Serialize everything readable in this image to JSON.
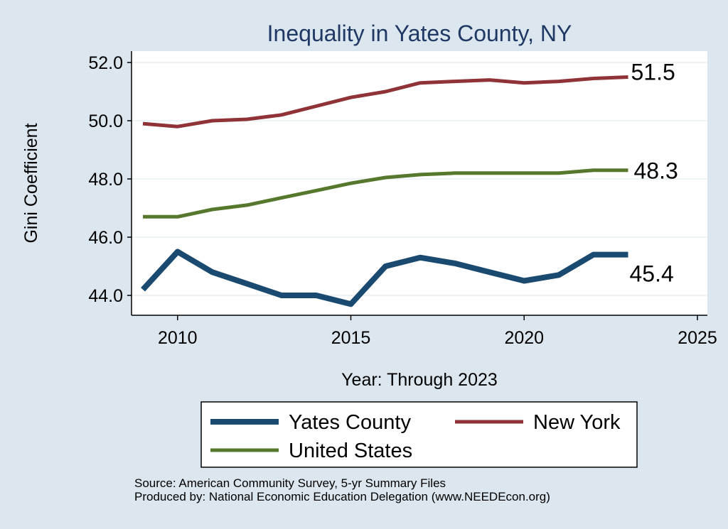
{
  "chart_data": {
    "type": "line",
    "title": "Inequality in Yates County, NY",
    "xlabel": "Year: Through 2023",
    "ylabel": "Gini Coefficient",
    "xlim": [
      2009,
      2025
    ],
    "ylim": [
      43.5,
      52.5
    ],
    "x_ticks": [
      "2010",
      "2015",
      "2020",
      "2025"
    ],
    "y_ticks": [
      "44.0",
      "46.0",
      "48.0",
      "50.0",
      "52.0"
    ],
    "x": [
      2009,
      2010,
      2011,
      2012,
      2013,
      2014,
      2015,
      2016,
      2017,
      2018,
      2019,
      2020,
      2021,
      2022,
      2023
    ],
    "series": [
      {
        "name": "Yates County",
        "color": "#1b4a70",
        "values": [
          44.2,
          45.5,
          44.8,
          44.4,
          44.0,
          44.0,
          43.7,
          45.0,
          45.3,
          45.1,
          44.8,
          44.5,
          44.7,
          45.4,
          45.4
        ],
        "end_label": "45.4"
      },
      {
        "name": "New York",
        "color": "#8f3337",
        "values": [
          49.9,
          49.8,
          50.0,
          50.05,
          50.2,
          50.5,
          50.8,
          51.0,
          51.3,
          51.35,
          51.4,
          51.3,
          51.35,
          51.45,
          51.5
        ],
        "end_label": "51.5"
      },
      {
        "name": "United States",
        "color": "#56782c",
        "values": [
          46.7,
          46.7,
          46.95,
          47.1,
          47.35,
          47.6,
          47.85,
          48.05,
          48.15,
          48.2,
          48.2,
          48.2,
          48.2,
          48.3,
          48.3
        ],
        "end_label": "48.3"
      }
    ],
    "legend": {
      "placement": "bottom",
      "entries": [
        "Yates County",
        "New York",
        "United States"
      ]
    },
    "grid": true
  },
  "footer": {
    "source": "Source: American Community Survey, 5-yr Summary Files",
    "produced_by": "Produced by: National Economic Education Delegation (www.NEEDEcon.org)"
  }
}
